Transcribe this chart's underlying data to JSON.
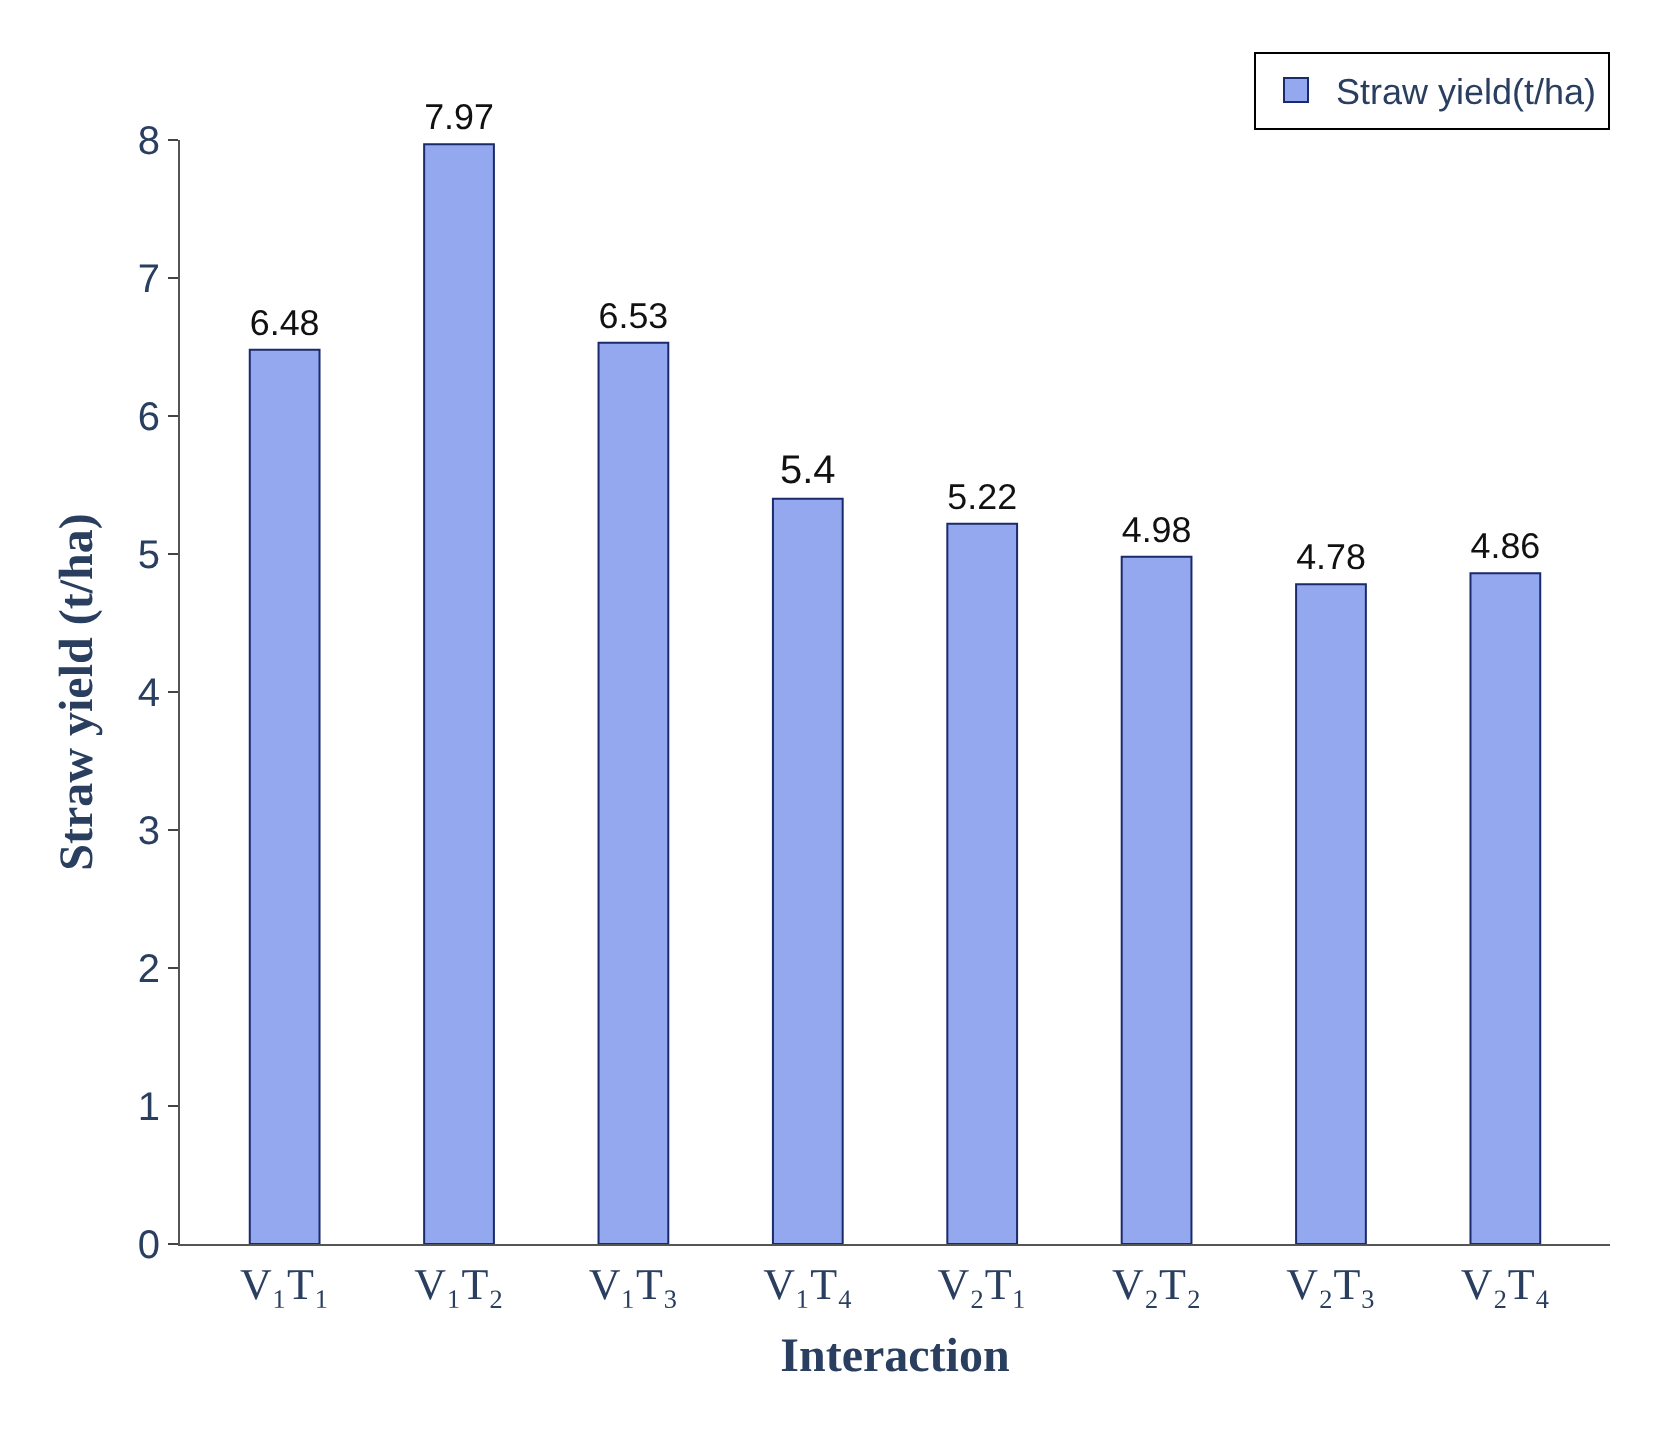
{
  "chart_data": {
    "type": "bar",
    "xlabel": "Interaction",
    "ylabel": "Straw yield (t/ha)",
    "categories": [
      "V₁T₁",
      "V₁T₂",
      "V₁T₃",
      "V₁T₄",
      "V₂T₁",
      "V₂T₂",
      "V₂T₃",
      "V₂T₄"
    ],
    "series": [
      {
        "name": "Straw yield(t/ha)",
        "color": "#94a8f0",
        "values": [
          6.48,
          7.97,
          6.53,
          5.4,
          5.22,
          4.98,
          4.78,
          4.86
        ]
      }
    ],
    "ylim": [
      0,
      8
    ],
    "yticks": [
      0,
      1,
      2,
      3,
      4,
      5,
      6,
      7,
      8
    ],
    "data_labels": true,
    "legend": "top right"
  }
}
